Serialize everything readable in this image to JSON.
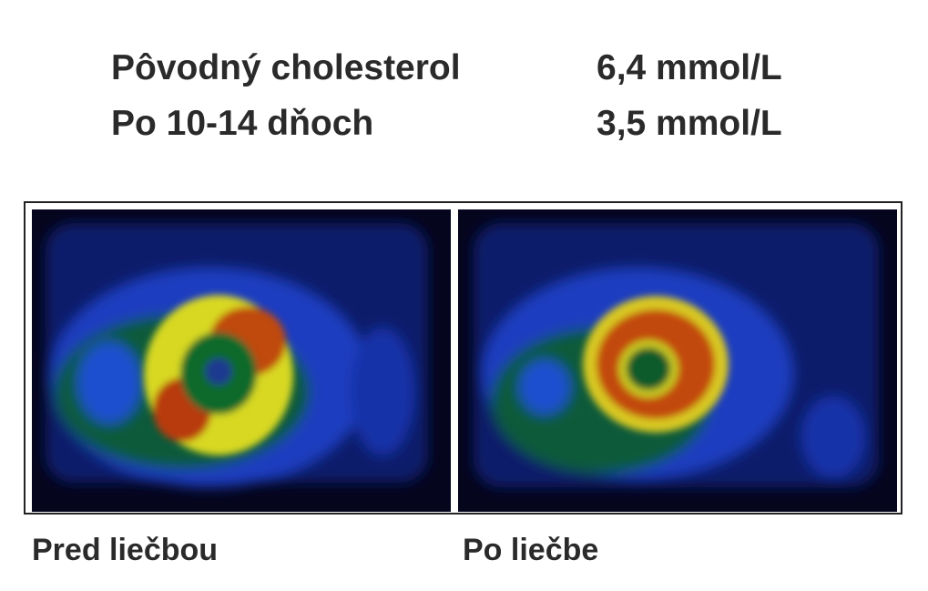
{
  "rows": [
    {
      "label": "Pôvodný cholesterol",
      "value": "6,4 mmol/L"
    },
    {
      "label": "Po 10-14 dňoch",
      "value": "3,5 mmol/L"
    }
  ],
  "captions": [
    "Pred liečbou",
    "Po liečbe"
  ]
}
